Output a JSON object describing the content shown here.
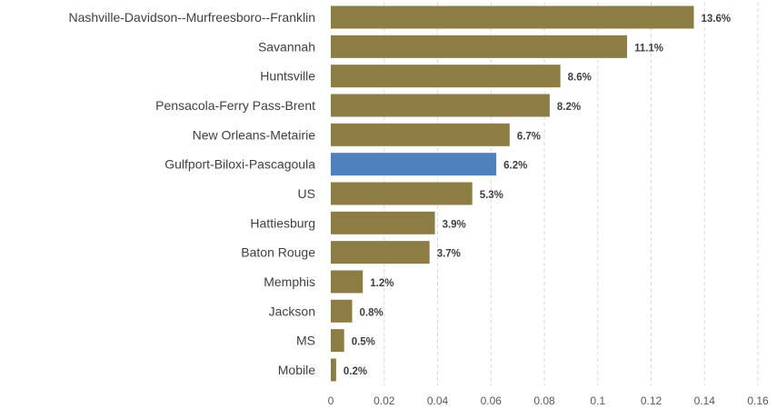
{
  "chart_data": {
    "type": "bar",
    "orientation": "horizontal",
    "categories": [
      "Nashville-Davidson--Murfreesboro--Franklin",
      "Savannah",
      "Huntsville",
      "Pensacola-Ferry Pass-Brent",
      "New Orleans-Metairie",
      "Gulfport-Biloxi-Pascagoula",
      "US",
      "Hattiesburg",
      "Baton Rouge",
      "Memphis",
      "Jackson",
      "MS",
      "Mobile"
    ],
    "values": [
      0.136,
      0.111,
      0.086,
      0.082,
      0.067,
      0.062,
      0.053,
      0.039,
      0.037,
      0.012,
      0.008,
      0.005,
      0.002
    ],
    "data_labels": [
      "13.6%",
      "11.1%",
      "8.6%",
      "8.2%",
      "6.7%",
      "6.2%",
      "5.3%",
      "3.9%",
      "3.7%",
      "1.2%",
      "0.8%",
      "0.5%",
      "0.2%"
    ],
    "highlight_category": "Gulfport-Biloxi-Pascagoula",
    "xlim": [
      0,
      0.16
    ],
    "x_ticks": [
      "0",
      "0.02",
      "0.04",
      "0.06",
      "0.08",
      "0.1",
      "0.12",
      "0.14",
      "0.16"
    ],
    "title": "",
    "xlabel": "",
    "ylabel": "",
    "grid": "vertical dashed",
    "legend": "none",
    "colors": {
      "bar": "#8b7d44",
      "highlight": "#4f81bd"
    }
  }
}
